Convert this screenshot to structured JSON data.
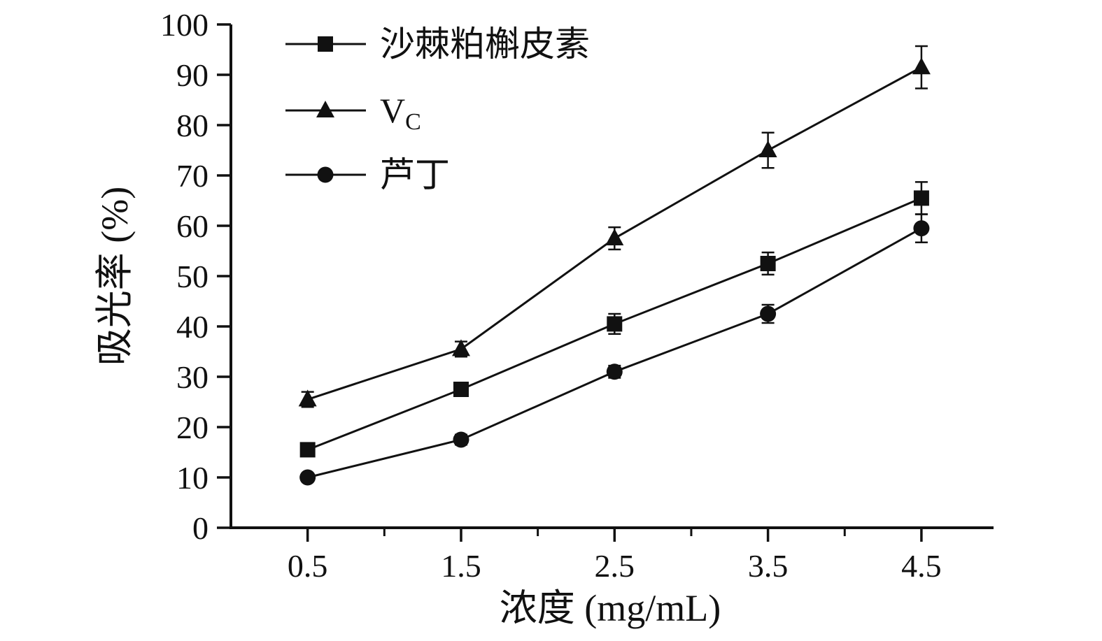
{
  "figure": {
    "background": "#ffffff",
    "ink_color": "#111111"
  },
  "chart_data": {
    "type": "line",
    "title": "",
    "xlabel": "浓度 (mg/mL)",
    "ylabel": "吸光率 (%)",
    "x": [
      0.5,
      1.5,
      2.5,
      3.5,
      4.5
    ],
    "xlim": [
      0,
      4.97
    ],
    "ylim": [
      0,
      100
    ],
    "x_major_ticks": [
      0.5,
      1.5,
      2.5,
      3.5,
      4.5
    ],
    "x_minor_ticks": [
      1.0,
      2.0,
      3.0,
      4.0
    ],
    "y_ticks": [
      0,
      10,
      20,
      30,
      40,
      50,
      60,
      70,
      80,
      90,
      100
    ],
    "grid": false,
    "legend_position": "top-left-inside",
    "series": [
      {
        "name": "沙棘粕槲皮素",
        "marker": "square",
        "values": [
          15.5,
          27.5,
          40.5,
          52.5,
          65.5
        ],
        "errors": [
          1.2,
          1.2,
          2.0,
          2.2,
          3.2
        ]
      },
      {
        "name": "VC",
        "label": "V",
        "label_sub": "C",
        "marker": "triangle",
        "values": [
          25.5,
          35.5,
          57.5,
          75.0,
          91.5
        ],
        "errors": [
          1.5,
          1.5,
          2.2,
          3.5,
          4.2
        ]
      },
      {
        "name": "芦丁",
        "marker": "circle",
        "values": [
          10.0,
          17.5,
          31.0,
          42.5,
          59.5
        ],
        "errors": [
          0.8,
          1.0,
          1.2,
          1.8,
          2.8
        ]
      }
    ]
  }
}
